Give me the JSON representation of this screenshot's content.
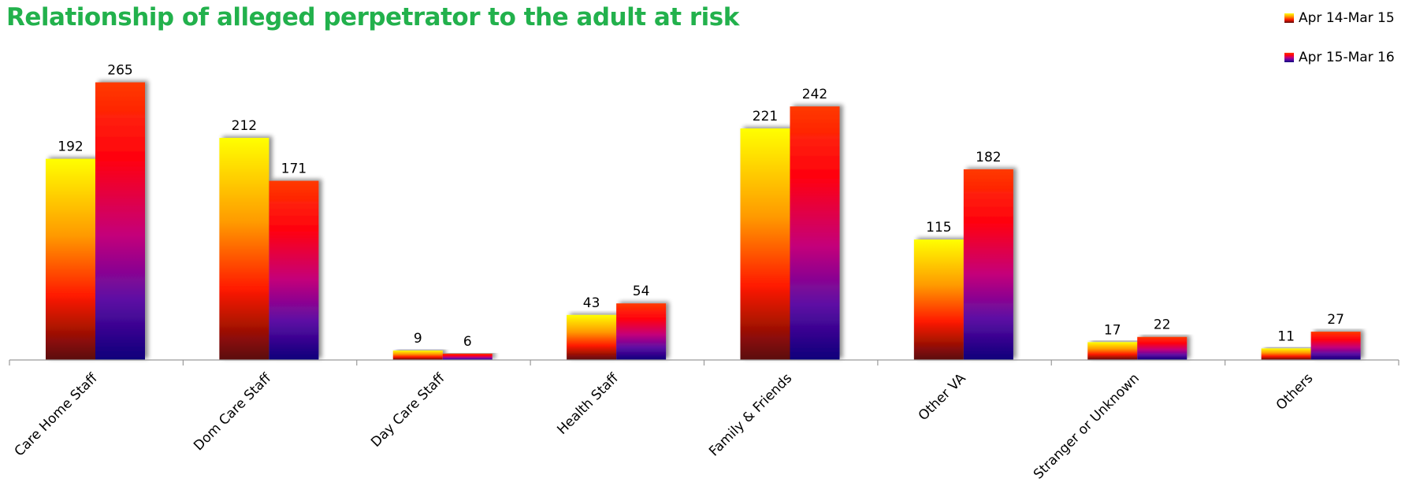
{
  "chart_data": {
    "type": "bar",
    "title": "Relationship of alleged perpetrator to the adult at risk",
    "xlabel": "",
    "ylabel": "",
    "categories": [
      "Care Home Staff",
      "Dom Care Staff",
      "Day Care Staff",
      "Health Staff",
      "Family & Friends",
      "Other VA",
      "Stranger or Unknown",
      "Others"
    ],
    "series": [
      {
        "name": "Apr 14-Mar 15",
        "values": [
          192,
          212,
          9,
          43,
          221,
          115,
          17,
          11
        ]
      },
      {
        "name": "Apr 15-Mar 16",
        "values": [
          265,
          171,
          6,
          54,
          242,
          182,
          22,
          27
        ]
      }
    ],
    "ylim": [
      0,
      300
    ],
    "grid": false,
    "legend_position": "top-right",
    "data_labels": true
  },
  "colors": {
    "title": "#22b14c",
    "series1_gradient": [
      "#ffff00",
      "#ff9900",
      "#ff1a00",
      "#5a0a0a"
    ],
    "series2_gradient": [
      "#ff3300",
      "#ff0010",
      "#c0007a",
      "#5a0aa0",
      "#10007a"
    ]
  }
}
